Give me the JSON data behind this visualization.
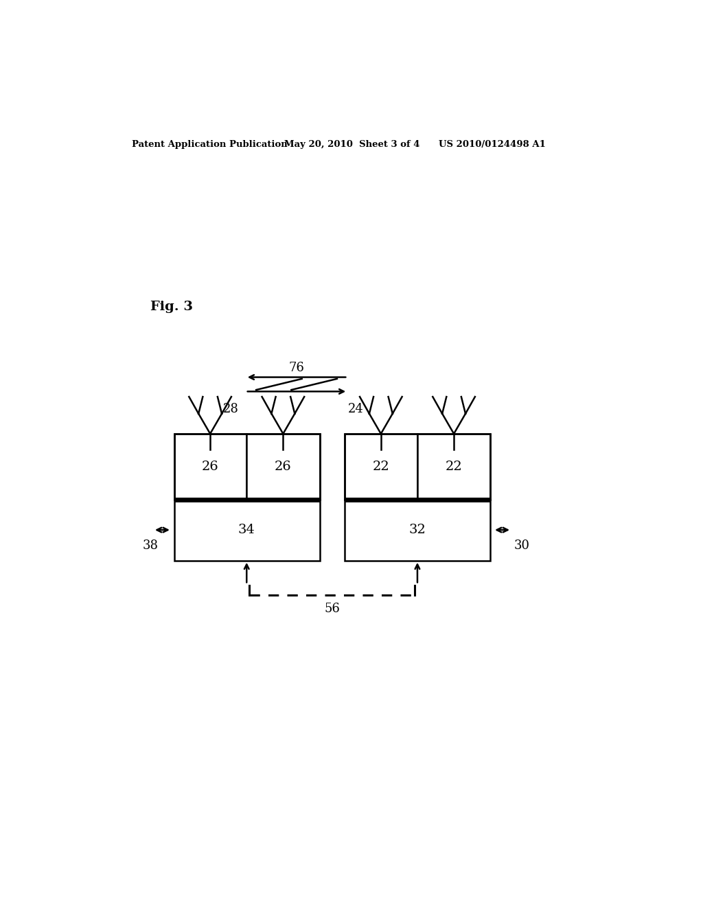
{
  "bg_color": "#ffffff",
  "header_left": "Patent Application Publication",
  "header_mid": "May 20, 2010  Sheet 3 of 4",
  "header_right": "US 2010/0124498 A1",
  "fig_label": "Fig. 3",
  "label_76": "76",
  "label_28": "28",
  "label_24": "24",
  "label_26a": "26",
  "label_26b": "26",
  "label_22a": "22",
  "label_22b": "22",
  "label_34": "34",
  "label_32": "32",
  "label_38": "38",
  "label_30": "30",
  "label_56": "56"
}
